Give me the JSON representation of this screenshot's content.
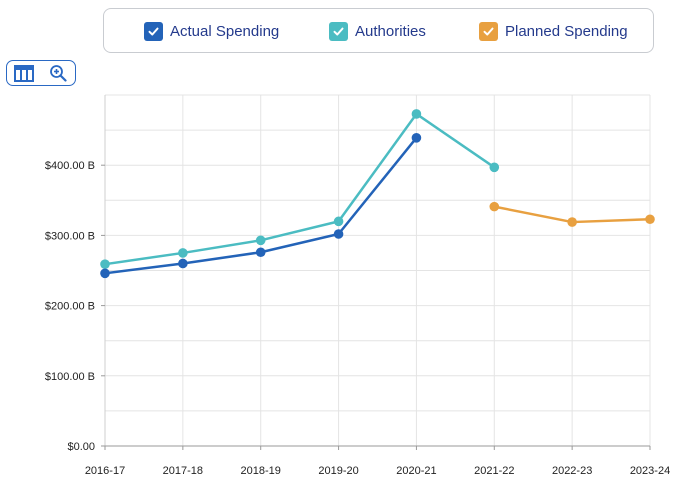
{
  "legend": {
    "items": [
      {
        "label": "Actual Spending",
        "color": "#2363b8"
      },
      {
        "label": "Authorities",
        "color": "#4bbcc2"
      },
      {
        "label": "Planned Spending",
        "color": "#e8a040"
      }
    ]
  },
  "toolbar": {
    "table_icon": "table-icon",
    "zoom_icon": "zoom-in-icon",
    "accent": "#2a69c4"
  },
  "chart_data": {
    "type": "line",
    "categories": [
      "2016-17",
      "2017-18",
      "2018-19",
      "2019-20",
      "2020-21",
      "2021-22",
      "2022-23",
      "2023-24"
    ],
    "y_tick_values": [
      0,
      100,
      200,
      300,
      400
    ],
    "y_tick_labels": [
      "$0.00",
      "$100.00 B",
      "$200.00 B",
      "$300.00 B",
      "$400.00 B"
    ],
    "ylim": [
      0,
      500
    ],
    "grid": true,
    "series": [
      {
        "name": "Authorities",
        "color": "#4bbcc2",
        "values": [
          259,
          275,
          293,
          320,
          473,
          397,
          null,
          null
        ]
      },
      {
        "name": "Actual Spending",
        "color": "#2363b8",
        "values": [
          246,
          260,
          276,
          302,
          439,
          null,
          null,
          null
        ]
      },
      {
        "name": "Planned Spending",
        "color": "#e8a040",
        "values": [
          null,
          null,
          null,
          null,
          null,
          341,
          319,
          323
        ]
      }
    ]
  }
}
